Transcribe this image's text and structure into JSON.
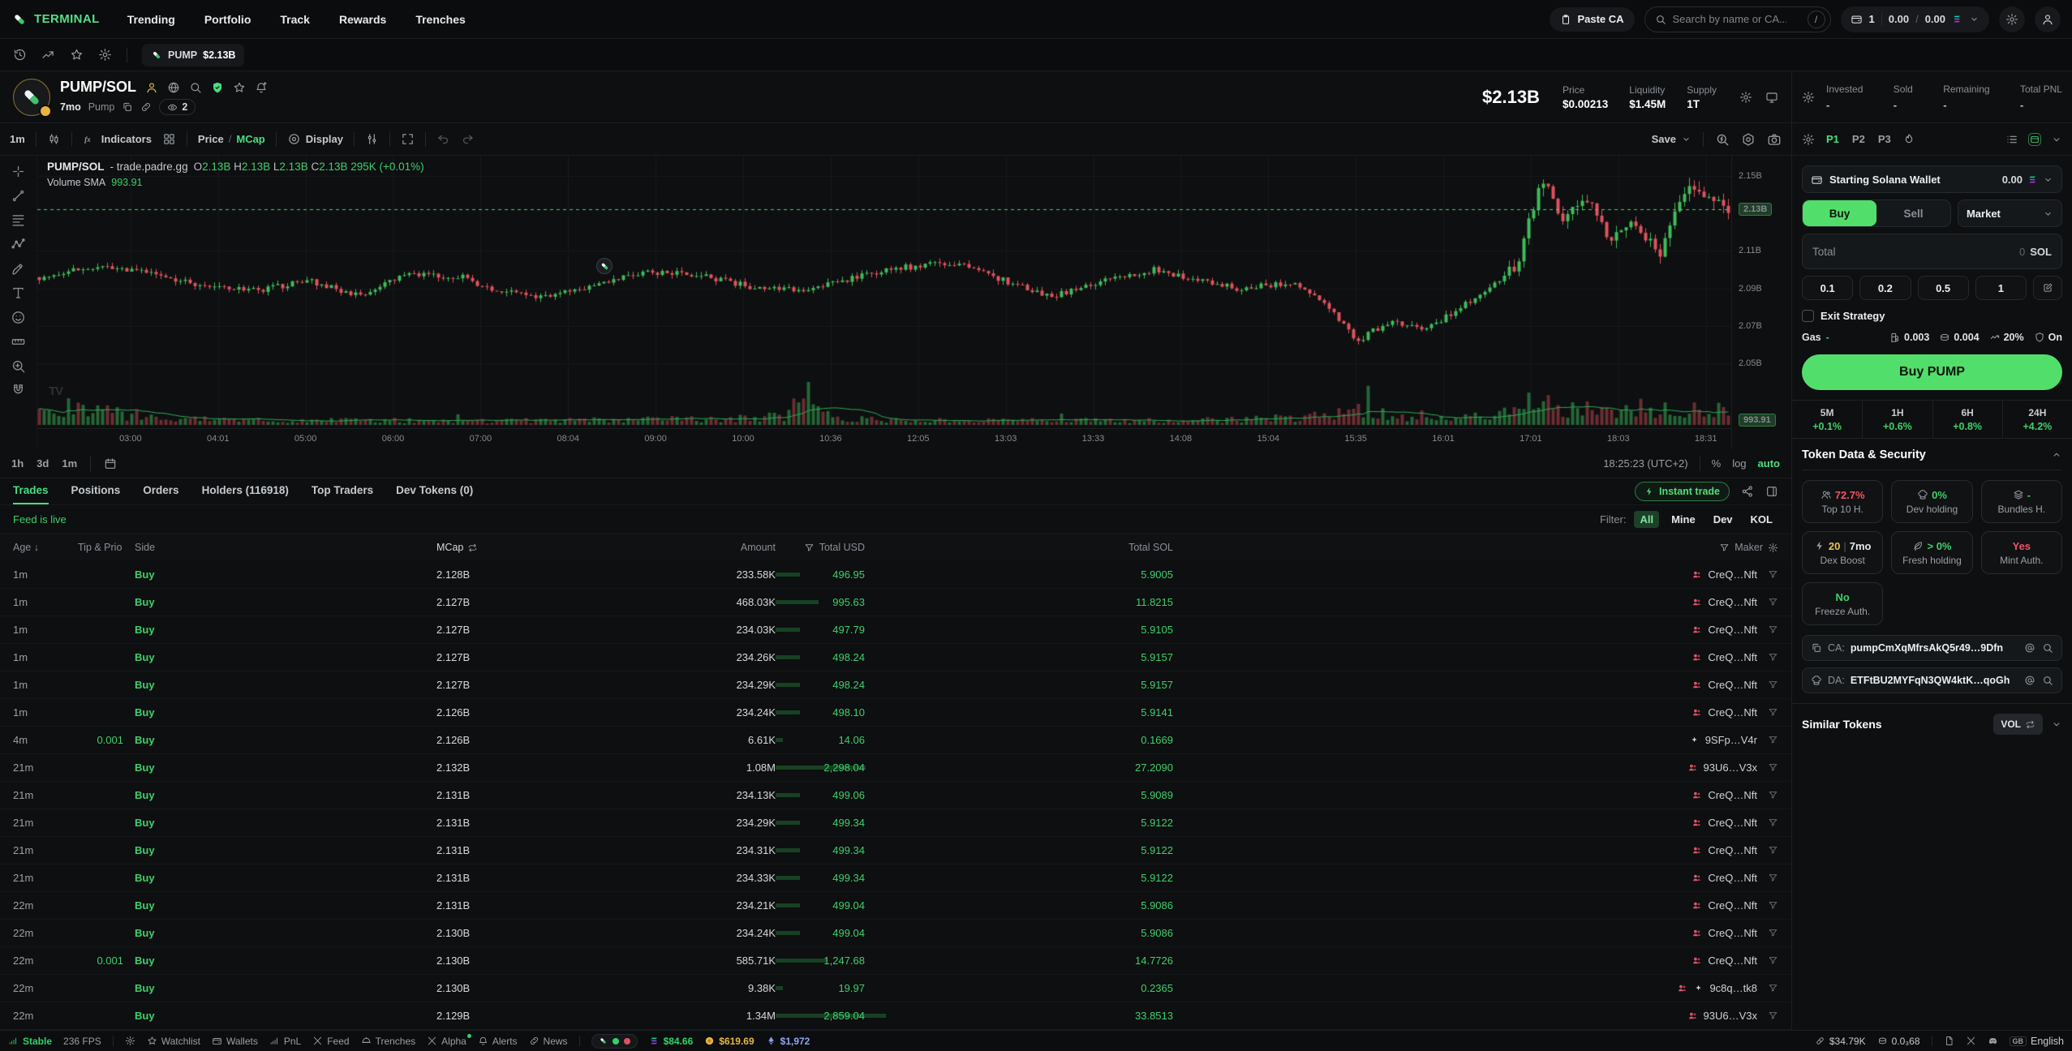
{
  "brand": {
    "name": "TERMINAL"
  },
  "nav": {
    "items": [
      "Trending",
      "Portfolio",
      "Track",
      "Rewards",
      "Trenches"
    ]
  },
  "topbar": {
    "paste_ca": "Paste CA",
    "search_placeholder": "Search by name or CA...",
    "search_key": "/",
    "wallet_count": "1",
    "balance_a": "0.00",
    "balance_b": "0.00"
  },
  "tabstrip": {
    "tab": {
      "symbol": "PUMP",
      "mcap": "$2.13B"
    }
  },
  "token": {
    "pair": "PUMP/SOL",
    "age": "7mo",
    "platform": "Pump",
    "watchers": "2",
    "mcap": "$2.13B",
    "stats": [
      {
        "label": "Price",
        "value": "$0.00213"
      },
      {
        "label": "Liquidity",
        "value": "$1.45M"
      },
      {
        "label": "Supply",
        "value": "1T"
      }
    ]
  },
  "chart_toolbar": {
    "interval": "1m",
    "indicators": "Indicators",
    "price_label": "Price",
    "slash": "/",
    "mcap_label": "MCap",
    "display": "Display",
    "save": "Save"
  },
  "chart_data": {
    "type": "candlestick",
    "title": "PUMP/SOL - trade.padre.gg",
    "legend": {
      "symbol": "PUMP/SOL",
      "venue": "- trade.padre.gg",
      "o": "2.13B",
      "h": "2.13B",
      "l": "2.13B",
      "c": "2.13B",
      "volume": "295K",
      "change": "(+0.01%)"
    },
    "indicator": {
      "label": "Volume SMA",
      "value": "993.91"
    },
    "y_axis": {
      "ticks": [
        "2.15B",
        "2.11B",
        "2.09B",
        "2.07B",
        "2.05B"
      ],
      "tick_values": [
        2.15,
        2.11,
        2.09,
        2.07,
        2.05
      ],
      "current_label": "2.13B",
      "current_value": 2.132,
      "range_min": 2.045,
      "range_max": 2.158
    },
    "volume_label": "993.91",
    "x_axis": {
      "ticks": [
        "03:00",
        "04:01",
        "05:00",
        "06:00",
        "07:00",
        "08:04",
        "09:00",
        "10:00",
        "10:36",
        "12:05",
        "13:03",
        "13:33",
        "14:08",
        "15:04",
        "15:35",
        "16:01",
        "17:01",
        "18:03",
        "18:31"
      ]
    },
    "price_profile": [
      [
        0,
        2.096
      ],
      [
        0.03,
        2.101
      ],
      [
        0.06,
        2.099
      ],
      [
        0.1,
        2.091
      ],
      [
        0.13,
        2.089
      ],
      [
        0.16,
        2.094
      ],
      [
        0.19,
        2.086
      ],
      [
        0.22,
        2.098
      ],
      [
        0.25,
        2.096
      ],
      [
        0.27,
        2.089
      ],
      [
        0.3,
        2.085
      ],
      [
        0.33,
        2.092
      ],
      [
        0.36,
        2.099
      ],
      [
        0.39,
        2.097
      ],
      [
        0.42,
        2.091
      ],
      [
        0.45,
        2.089
      ],
      [
        0.48,
        2.095
      ],
      [
        0.51,
        2.101
      ],
      [
        0.54,
        2.104
      ],
      [
        0.56,
        2.098
      ],
      [
        0.58,
        2.091
      ],
      [
        0.6,
        2.086
      ],
      [
        0.63,
        2.094
      ],
      [
        0.66,
        2.1
      ],
      [
        0.68,
        2.096
      ],
      [
        0.71,
        2.09
      ],
      [
        0.74,
        2.093
      ],
      [
        0.76,
        2.083
      ],
      [
        0.78,
        2.062
      ],
      [
        0.8,
        2.073
      ],
      [
        0.82,
        2.068
      ],
      [
        0.84,
        2.079
      ],
      [
        0.86,
        2.09
      ],
      [
        0.875,
        2.104
      ],
      [
        0.89,
        2.149
      ],
      [
        0.9,
        2.127
      ],
      [
        0.915,
        2.141
      ],
      [
        0.93,
        2.117
      ],
      [
        0.945,
        2.126
      ],
      [
        0.96,
        2.107
      ],
      [
        0.975,
        2.146
      ],
      [
        0.99,
        2.136
      ],
      [
        1,
        2.132
      ]
    ],
    "volume_profile": [
      [
        0,
        0.45
      ],
      [
        0.02,
        0.6
      ],
      [
        0.05,
        0.35
      ],
      [
        0.1,
        0.18
      ],
      [
        0.15,
        0.15
      ],
      [
        0.2,
        0.16
      ],
      [
        0.25,
        0.13
      ],
      [
        0.3,
        0.14
      ],
      [
        0.35,
        0.18
      ],
      [
        0.4,
        0.2
      ],
      [
        0.44,
        0.3
      ],
      [
        0.455,
        0.95
      ],
      [
        0.47,
        0.3
      ],
      [
        0.5,
        0.16
      ],
      [
        0.55,
        0.14
      ],
      [
        0.6,
        0.15
      ],
      [
        0.65,
        0.16
      ],
      [
        0.7,
        0.18
      ],
      [
        0.75,
        0.25
      ],
      [
        0.78,
        0.55
      ],
      [
        0.8,
        0.3
      ],
      [
        0.83,
        0.22
      ],
      [
        0.86,
        0.35
      ],
      [
        0.885,
        0.75
      ],
      [
        0.9,
        0.55
      ],
      [
        0.92,
        0.5
      ],
      [
        0.94,
        0.45
      ],
      [
        0.96,
        0.55
      ],
      [
        0.98,
        0.65
      ],
      [
        1,
        0.5
      ]
    ],
    "colors": {
      "up": "#3fbc5b",
      "down": "#e1525e",
      "current": "#3ed56e"
    }
  },
  "tf_row": {
    "ranges": [
      "1h",
      "3d",
      "1m"
    ],
    "clock": "18:25:23 (UTC+2)",
    "pct": "%",
    "log": "log",
    "auto": "auto"
  },
  "tabs": {
    "items": [
      "Trades",
      "Positions",
      "Orders",
      "Holders (116918)",
      "Top Traders",
      "Dev Tokens (0)"
    ],
    "active": 0,
    "instant_trade": "Instant trade"
  },
  "feed": {
    "status": "Feed is live",
    "filter_label": "Filter:",
    "filters": [
      "All",
      "Mine",
      "Dev",
      "KOL"
    ],
    "active_filter": "All"
  },
  "table": {
    "headers": {
      "age": "Age",
      "tip": "Tip & Prio",
      "side": "Side",
      "mcap": "MCap",
      "amount": "Amount",
      "usd": "Total USD",
      "sol": "Total SOL",
      "maker": "Maker"
    },
    "rows": [
      {
        "age": "1m",
        "tip": "",
        "side": "Buy",
        "mcap": "2.128B",
        "amount": "233.58K",
        "usd": "496.95",
        "sol": "5.9005",
        "maker": "CreQ…Nft",
        "maker_icons": [
          "sybil"
        ]
      },
      {
        "age": "1m",
        "tip": "",
        "side": "Buy",
        "mcap": "2.127B",
        "amount": "468.03K",
        "usd": "995.63",
        "sol": "11.8215",
        "maker": "CreQ…Nft",
        "maker_icons": [
          "sybil"
        ]
      },
      {
        "age": "1m",
        "tip": "",
        "side": "Buy",
        "mcap": "2.127B",
        "amount": "234.03K",
        "usd": "497.79",
        "sol": "5.9105",
        "maker": "CreQ…Nft",
        "maker_icons": [
          "sybil"
        ]
      },
      {
        "age": "1m",
        "tip": "",
        "side": "Buy",
        "mcap": "2.127B",
        "amount": "234.26K",
        "usd": "498.24",
        "sol": "5.9157",
        "maker": "CreQ…Nft",
        "maker_icons": [
          "sybil"
        ]
      },
      {
        "age": "1m",
        "tip": "",
        "side": "Buy",
        "mcap": "2.127B",
        "amount": "234.29K",
        "usd": "498.24",
        "sol": "5.9157",
        "maker": "CreQ…Nft",
        "maker_icons": [
          "sybil"
        ]
      },
      {
        "age": "1m",
        "tip": "",
        "side": "Buy",
        "mcap": "2.126B",
        "amount": "234.24K",
        "usd": "498.10",
        "sol": "5.9141",
        "maker": "CreQ…Nft",
        "maker_icons": [
          "sybil"
        ]
      },
      {
        "age": "4m",
        "tip": "0.001",
        "side": "Buy",
        "mcap": "2.126B",
        "amount": "6.61K",
        "usd": "14.06",
        "sol": "0.1669",
        "maker": "9SFp…V4r",
        "maker_icons": [
          "sparkle"
        ]
      },
      {
        "age": "21m",
        "tip": "",
        "side": "Buy",
        "mcap": "2.132B",
        "amount": "1.08M",
        "usd": "2,298.04",
        "sol": "27.2090",
        "maker": "93U6…V3x",
        "maker_icons": [
          "sybil"
        ]
      },
      {
        "age": "21m",
        "tip": "",
        "side": "Buy",
        "mcap": "2.131B",
        "amount": "234.13K",
        "usd": "499.06",
        "sol": "5.9089",
        "maker": "CreQ…Nft",
        "maker_icons": [
          "sybil"
        ]
      },
      {
        "age": "21m",
        "tip": "",
        "side": "Buy",
        "mcap": "2.131B",
        "amount": "234.29K",
        "usd": "499.34",
        "sol": "5.9122",
        "maker": "CreQ…Nft",
        "maker_icons": [
          "sybil"
        ]
      },
      {
        "age": "21m",
        "tip": "",
        "side": "Buy",
        "mcap": "2.131B",
        "amount": "234.31K",
        "usd": "499.34",
        "sol": "5.9122",
        "maker": "CreQ…Nft",
        "maker_icons": [
          "sybil"
        ]
      },
      {
        "age": "21m",
        "tip": "",
        "side": "Buy",
        "mcap": "2.131B",
        "amount": "234.33K",
        "usd": "499.34",
        "sol": "5.9122",
        "maker": "CreQ…Nft",
        "maker_icons": [
          "sybil"
        ]
      },
      {
        "age": "22m",
        "tip": "",
        "side": "Buy",
        "mcap": "2.131B",
        "amount": "234.21K",
        "usd": "499.04",
        "sol": "5.9086",
        "maker": "CreQ…Nft",
        "maker_icons": [
          "sybil"
        ]
      },
      {
        "age": "22m",
        "tip": "",
        "side": "Buy",
        "mcap": "2.130B",
        "amount": "234.24K",
        "usd": "499.04",
        "sol": "5.9086",
        "maker": "CreQ…Nft",
        "maker_icons": [
          "sybil"
        ]
      },
      {
        "age": "22m",
        "tip": "0.001",
        "side": "Buy",
        "mcap": "2.130B",
        "amount": "585.71K",
        "usd": "1,247.68",
        "sol": "14.7726",
        "maker": "CreQ…Nft",
        "maker_icons": [
          "sybil"
        ]
      },
      {
        "age": "22m",
        "tip": "",
        "side": "Buy",
        "mcap": "2.130B",
        "amount": "9.38K",
        "usd": "19.97",
        "sol": "0.2365",
        "maker": "9c8q…tk8",
        "maker_icons": [
          "sybil",
          "sparkle"
        ]
      },
      {
        "age": "22m",
        "tip": "",
        "side": "Buy",
        "mcap": "2.129B",
        "amount": "1.34M",
        "usd": "2,859.04",
        "sol": "33.8513",
        "maker": "93U6…V3x",
        "maker_icons": [
          "sybil"
        ]
      }
    ]
  },
  "sidebar": {
    "pnl": {
      "items": [
        {
          "label": "Invested",
          "value": "-"
        },
        {
          "label": "Sold",
          "value": "-"
        },
        {
          "label": "Remaining",
          "value": "-"
        },
        {
          "label": "Total PNL",
          "value": "-"
        }
      ]
    },
    "presets": {
      "items": [
        "P1",
        "P2",
        "P3"
      ],
      "active": 0
    },
    "wallet": {
      "name": "Starting Solana Wallet",
      "balance": "0.00"
    },
    "trade": {
      "buy": "Buy",
      "sell": "Sell",
      "order_type": "Market",
      "total_label": "Total",
      "total_value": "0",
      "total_unit": "SOL",
      "amounts": [
        "0.1",
        "0.2",
        "0.5",
        "1"
      ],
      "exit_strategy": "Exit Strategy",
      "gas_label": "Gas",
      "gas_value": "-",
      "fee_items": [
        {
          "icon": "fuel",
          "value": "0.003"
        },
        {
          "icon": "tipcoin",
          "value": "0.004"
        },
        {
          "icon": "slip",
          "value": "20%"
        },
        {
          "icon": "shieldS",
          "value": "On"
        }
      ],
      "submit": "Buy PUMP"
    },
    "timeframes": [
      {
        "label": "5M",
        "value": "+0.1%"
      },
      {
        "label": "1H",
        "value": "+0.6%"
      },
      {
        "label": "6H",
        "value": "+0.8%"
      },
      {
        "label": "24H",
        "value": "+4.2%"
      }
    ],
    "security": {
      "title": "Token Data & Security",
      "cards": [
        {
          "icon": "people",
          "value": "72.7%",
          "label": "Top 10 H.",
          "tone": "red"
        },
        {
          "icon": "chef",
          "value": "0%",
          "label": "Dev holding",
          "tone": "green"
        },
        {
          "icon": "layers",
          "value": "-",
          "label": "Bundles H.",
          "tone": "green"
        },
        {
          "icon": "bolt",
          "value": "20",
          "extra": "7mo",
          "label": "Dex Boost",
          "tone": "yellow"
        },
        {
          "icon": "leaf",
          "value": "> 0%",
          "label": "Fresh holding",
          "tone": "green"
        },
        {
          "icon": "",
          "value": "Yes",
          "label": "Mint Auth.",
          "tone": "red"
        },
        {
          "icon": "",
          "value": "No",
          "label": "Freeze Auth.",
          "tone": "green"
        }
      ]
    },
    "addresses": [
      {
        "icon": "copy",
        "prefix": "CA:",
        "value": "pumpCmXqMfrsAkQ5r49…9Dfn"
      },
      {
        "icon": "chef",
        "prefix": "DA:",
        "value": "ETFtBU2MYFqN3QW4ktK…qoGh"
      }
    ],
    "similar": {
      "title": "Similar Tokens",
      "sort": "VOL"
    }
  },
  "footer": {
    "status": {
      "label": "Stable",
      "fps": "236 FPS"
    },
    "menu": [
      {
        "icon": "star",
        "label": "Watchlist"
      },
      {
        "icon": "wallet",
        "label": "Wallets"
      },
      {
        "icon": "signal",
        "label": "PnL"
      },
      {
        "icon": "xlogo",
        "label": "Feed"
      },
      {
        "icon": "helmet",
        "label": "Trenches"
      },
      {
        "icon": "xlogo",
        "label": "Alpha",
        "dot": true
      },
      {
        "icon": "bell",
        "label": "Alerts"
      },
      {
        "icon": "link",
        "label": "News"
      }
    ],
    "tickers": [
      {
        "icon": "solbars",
        "value": "$84.66",
        "color": "#2fd46a"
      },
      {
        "icon": "goldcoin",
        "value": "$619.69",
        "color": "#e9b53c"
      },
      {
        "icon": "eth",
        "value": "$1,972",
        "color": "#8ea6f8"
      }
    ],
    "right_stats": [
      {
        "icon": "pill2",
        "value": "$34.79K"
      },
      {
        "icon": "tipcoin",
        "value": "0.0₃68"
      }
    ],
    "lang": {
      "code": "GB",
      "label": "English"
    }
  }
}
